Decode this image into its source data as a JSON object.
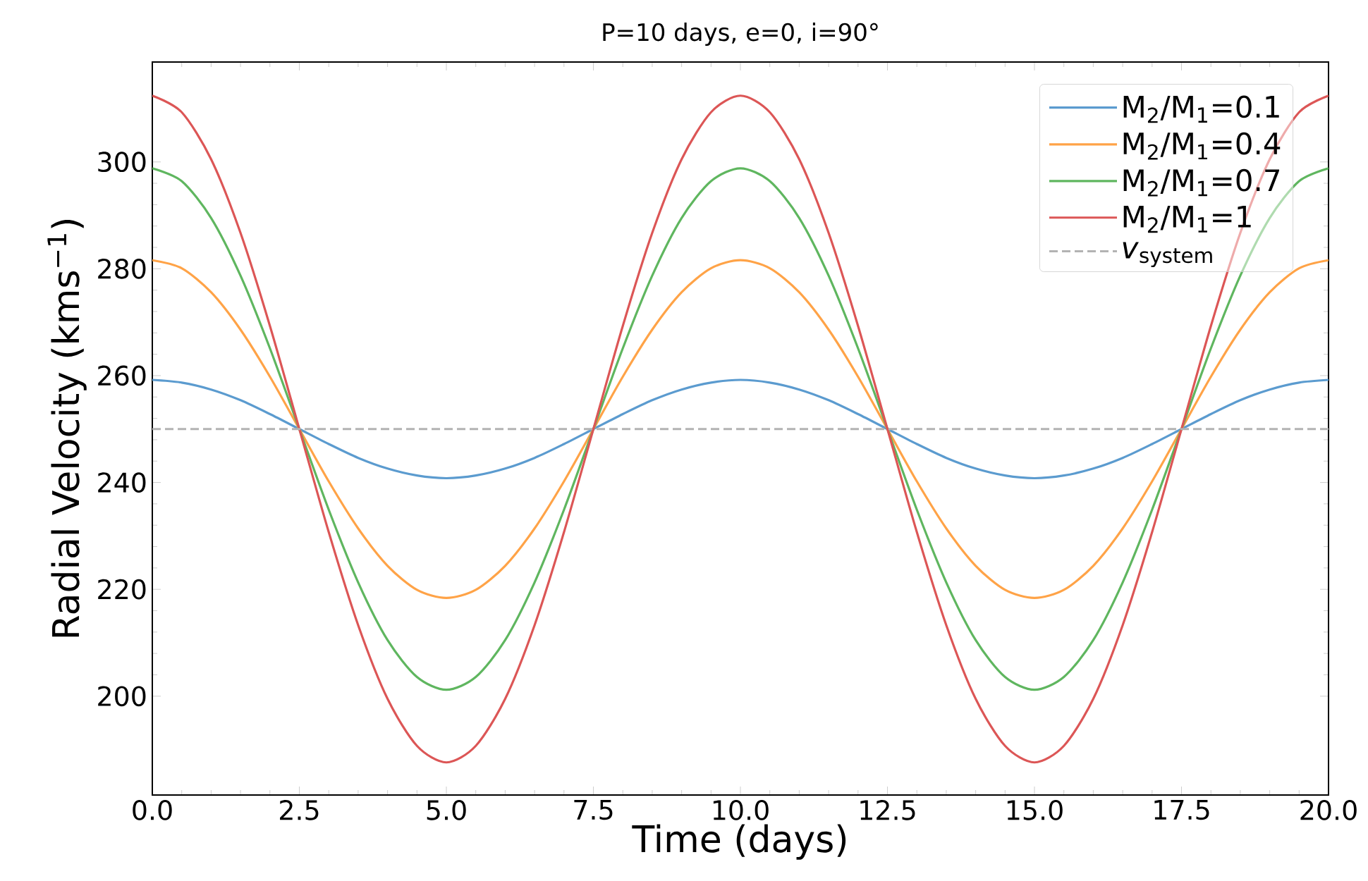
{
  "chart_data": {
    "type": "line",
    "title": "P=10 days, e=0, i=90°",
    "xlabel": "Time (days)",
    "ylabel": "Radial Velocity (kms$^{−1}$)",
    "x": [
      0,
      0.5,
      1,
      1.5,
      2,
      2.5,
      3,
      3.5,
      4,
      4.5,
      5,
      5.5,
      6,
      6.5,
      7,
      7.5,
      8,
      8.5,
      9,
      9.5,
      10,
      10.5,
      11,
      11.5,
      12,
      12.5,
      13,
      13.5,
      14,
      14.5,
      15,
      15.5,
      16,
      16.5,
      17,
      17.5,
      18,
      18.5,
      19,
      19.5,
      20
    ],
    "series": [
      {
        "name": "M$_{2}$/M$_{1}$=0.1",
        "color": "#5b9bcf",
        "values": [
          259.2,
          258.7,
          257.4,
          255.4,
          252.8,
          250,
          247.2,
          244.6,
          242.6,
          241.3,
          240.8,
          241.3,
          242.6,
          244.6,
          247.2,
          250,
          252.8,
          255.4,
          257.4,
          258.7,
          259.2,
          258.7,
          257.4,
          255.4,
          252.8,
          250,
          247.2,
          244.6,
          242.6,
          241.3,
          240.8,
          241.3,
          242.6,
          244.6,
          247.2,
          250,
          252.8,
          255.4,
          257.4,
          258.7,
          259.2
        ]
      },
      {
        "name": "M$_{2}$/M$_{1}$=0.4",
        "color": "#ffa347",
        "values": [
          281.6,
          280.1,
          275.6,
          268.6,
          259.8,
          250,
          240.2,
          231.4,
          224.4,
          219.9,
          218.4,
          219.9,
          224.4,
          231.4,
          240.2,
          250,
          259.8,
          268.6,
          275.6,
          280.1,
          281.6,
          280.1,
          275.6,
          268.6,
          259.8,
          250,
          240.2,
          231.4,
          224.4,
          219.9,
          218.4,
          219.9,
          224.4,
          231.4,
          240.2,
          250,
          259.8,
          268.6,
          275.6,
          280.1,
          281.6
        ]
      },
      {
        "name": "M$_{2}$/M$_{1}$=0.7",
        "color": "#5fb65f",
        "values": [
          298.8,
          296.4,
          289.5,
          278.7,
          265.1,
          250,
          234.9,
          221.3,
          210.5,
          203.6,
          201.2,
          203.6,
          210.5,
          221.3,
          234.9,
          250,
          265.1,
          278.7,
          289.5,
          296.4,
          298.8,
          296.4,
          289.5,
          278.7,
          265.1,
          250,
          234.9,
          221.3,
          210.5,
          203.6,
          201.2,
          203.6,
          210.5,
          221.3,
          234.9,
          250,
          265.1,
          278.7,
          289.5,
          296.4,
          298.8
        ]
      },
      {
        "name": "M$_{2}$/M$_{1}$=1",
        "color": "#dc5656",
        "values": [
          312.4,
          309.3,
          300.5,
          286.7,
          269.3,
          250,
          230.7,
          213.3,
          199.5,
          190.7,
          187.6,
          190.7,
          199.5,
          213.3,
          230.7,
          250,
          269.3,
          286.7,
          300.5,
          309.3,
          312.4,
          309.3,
          300.5,
          286.7,
          269.3,
          250,
          230.7,
          213.3,
          199.5,
          190.7,
          187.6,
          190.7,
          199.5,
          213.3,
          230.7,
          250,
          269.3,
          286.7,
          300.5,
          309.3,
          312.4
        ]
      }
    ],
    "ref_lines": [
      {
        "axis": "y",
        "value": 250,
        "label": "*v*$_{system}$",
        "color": "#b3b3b3",
        "line_style": "dashed"
      }
    ],
    "xlim": [
      0,
      20
    ],
    "ylim": [
      181.5,
      318.7
    ],
    "xticks": [
      {
        "value": 0,
        "label": "0.0"
      },
      2.5,
      {
        "value": 5,
        "label": "5.0"
      },
      7.5,
      {
        "value": 10,
        "label": "10.0"
      },
      12.5,
      {
        "value": 15,
        "label": "15.0"
      },
      17.5,
      {
        "value": 20,
        "label": "20.0"
      }
    ],
    "yticks": [
      200,
      220,
      240,
      260,
      280,
      300
    ],
    "grid": false,
    "legend": "top right",
    "marker": "none",
    "line_style": "solid"
  }
}
